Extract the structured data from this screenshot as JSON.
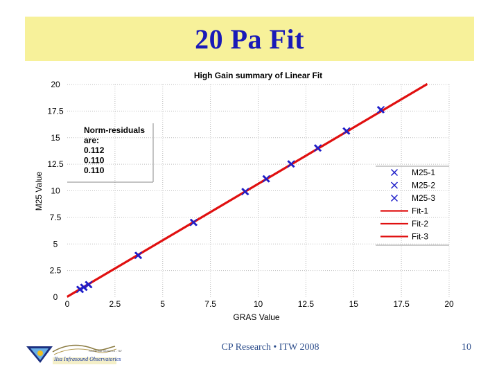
{
  "slide": {
    "title": "20 Pa Fit",
    "footer": "CP Research • ITW 2008",
    "page_number": "10",
    "logo_text": "Ilsa Infrasound Observatories",
    "logo_small": "Ready that fashioned - 767"
  },
  "annotation": {
    "lines": [
      "Norm-residuals",
      "are:",
      "0.112",
      "0.110",
      "0.110"
    ]
  },
  "colors": {
    "title": "#1a1ab8",
    "band": "#f7f19a",
    "marker": "#1f1fc9",
    "fit": "#e01010"
  },
  "chart_data": {
    "type": "scatter",
    "title": "High Gain summary of Linear Fit",
    "xlabel": "GRAS Value",
    "ylabel": "M25 Value",
    "xlim": [
      0,
      20
    ],
    "ylim": [
      0,
      20
    ],
    "xticks": [
      0,
      2.5,
      5,
      7.5,
      10,
      12.5,
      15,
      17.5,
      20
    ],
    "yticks": [
      0,
      2.5,
      5,
      7.5,
      10,
      12.5,
      15,
      17.5,
      20
    ],
    "xtick_labels": [
      "0",
      "2.5",
      "5",
      "7.5",
      "10",
      "12.5",
      "15",
      "17.5",
      "20"
    ],
    "ytick_labels": [
      "0",
      "2.5",
      "5",
      "7.5",
      "10",
      "12.5",
      "15",
      "17.5",
      "20"
    ],
    "grid": true,
    "legend_position": "right",
    "series": [
      {
        "name": "M25-1",
        "kind": "marker",
        "x": [
          0.65,
          0.85,
          1.1,
          3.7,
          6.6,
          9.3,
          10.4,
          11.7,
          13.1,
          14.6,
          16.4
        ],
        "y": [
          0.7,
          0.9,
          1.15,
          3.9,
          7.0,
          9.9,
          11.1,
          12.5,
          14.0,
          15.6,
          17.6
        ]
      },
      {
        "name": "M25-2",
        "kind": "marker",
        "x": [
          0.65,
          0.85,
          1.1,
          3.7,
          6.6,
          9.3,
          10.4,
          11.7,
          13.1,
          14.6,
          16.4
        ],
        "y": [
          0.7,
          0.9,
          1.15,
          3.9,
          7.0,
          9.9,
          11.1,
          12.5,
          14.0,
          15.6,
          17.6
        ]
      },
      {
        "name": "M25-3",
        "kind": "marker",
        "x": [
          0.65,
          0.85,
          1.1,
          3.7,
          6.6,
          9.3,
          10.4,
          11.7,
          13.1,
          14.6,
          16.4
        ],
        "y": [
          0.7,
          0.9,
          1.15,
          3.9,
          7.0,
          9.9,
          11.1,
          12.5,
          14.0,
          15.6,
          17.6
        ]
      },
      {
        "name": "Fit-1",
        "kind": "line",
        "x": [
          0,
          18.85
        ],
        "y": [
          0,
          20
        ]
      },
      {
        "name": "Fit-2",
        "kind": "line",
        "x": [
          0,
          18.85
        ],
        "y": [
          0,
          20
        ]
      },
      {
        "name": "Fit-3",
        "kind": "line",
        "x": [
          0,
          18.85
        ],
        "y": [
          0,
          20
        ]
      }
    ]
  }
}
